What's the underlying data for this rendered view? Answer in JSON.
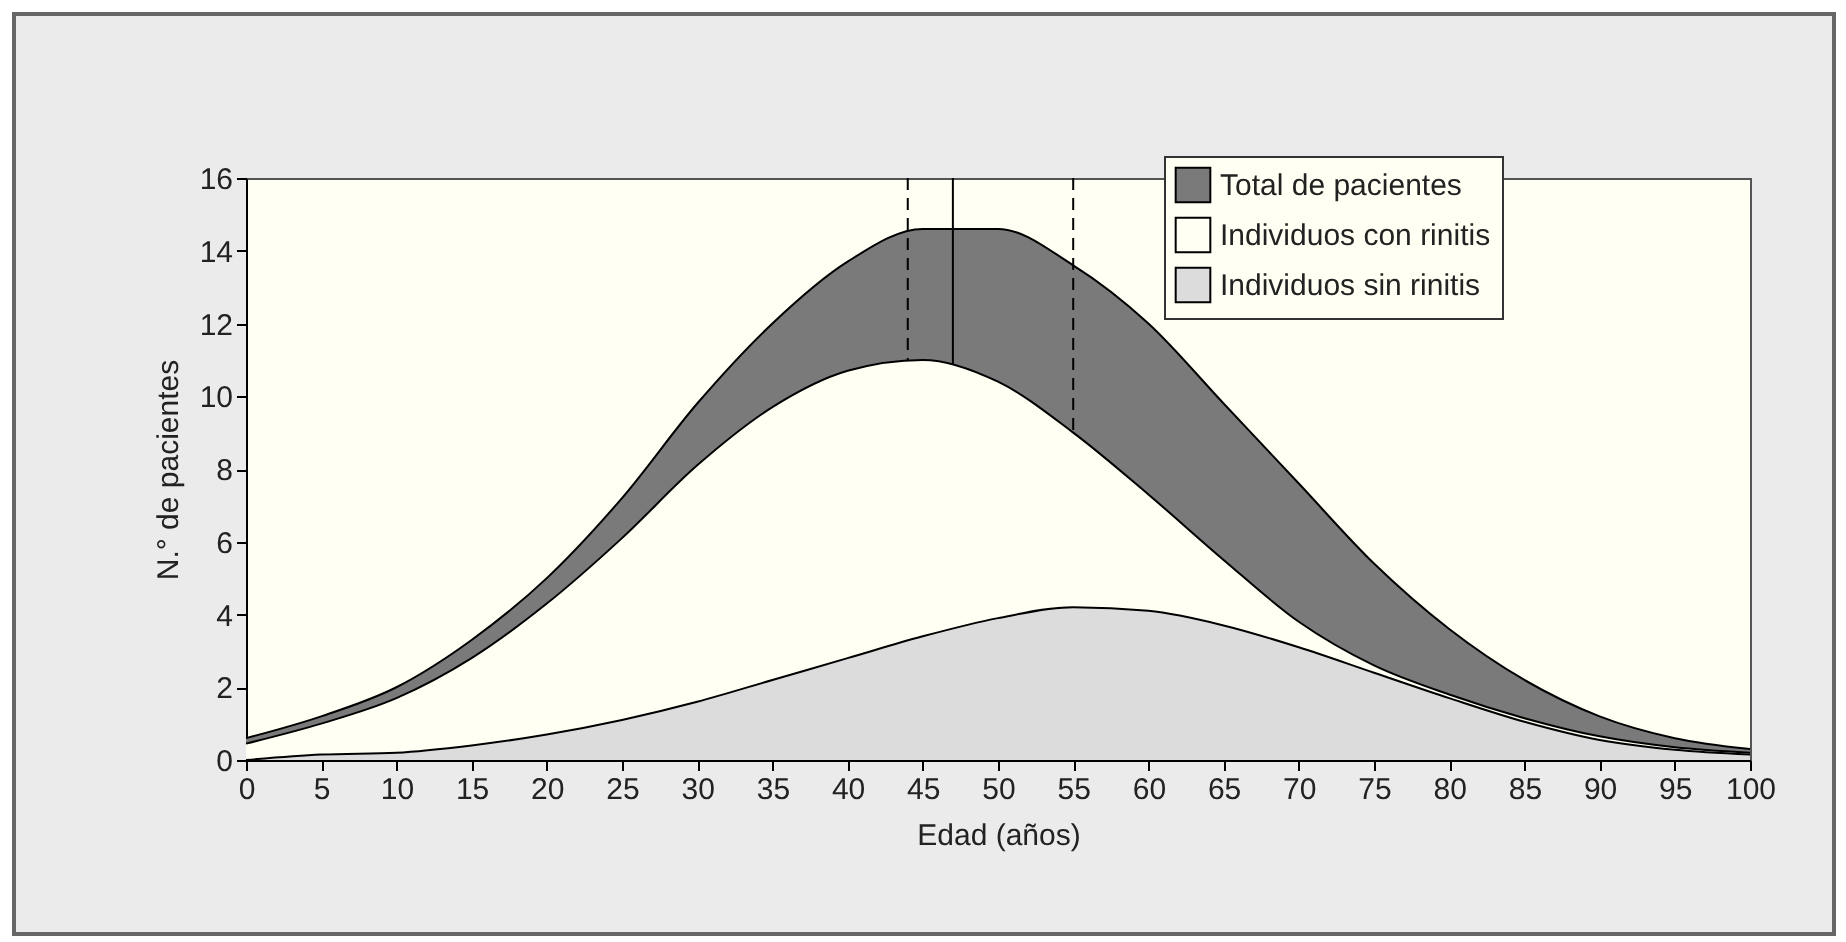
{
  "chart_data": {
    "type": "area",
    "xlabel": "Edad (años)",
    "ylabel": "N.° de pacientes",
    "x": [
      0,
      5,
      10,
      15,
      20,
      25,
      30,
      35,
      40,
      45,
      50,
      55,
      60,
      65,
      70,
      75,
      80,
      85,
      90,
      95,
      100
    ],
    "series": [
      {
        "name": "Total de pacientes",
        "color": "#7a7a7a",
        "values": [
          0.6,
          1.2,
          2.0,
          3.3,
          5.0,
          7.2,
          9.8,
          12.0,
          13.7,
          14.6,
          14.6,
          13.6,
          12.0,
          9.8,
          7.6,
          5.4,
          3.6,
          2.2,
          1.2,
          0.6,
          0.3
        ]
      },
      {
        "name": "Individuos con rinitis",
        "color": "#fffff3",
        "values": [
          0.45,
          1.0,
          1.7,
          2.8,
          4.3,
          6.1,
          8.1,
          9.7,
          10.7,
          11.0,
          10.4,
          9.0,
          7.3,
          5.5,
          3.8,
          2.6,
          1.8,
          1.15,
          0.65,
          0.35,
          0.2
        ]
      },
      {
        "name": "Individuos sin rinitis",
        "color": "#dcdcdc",
        "values": [
          0,
          0.15,
          0.2,
          0.4,
          0.7,
          1.1,
          1.6,
          2.2,
          2.8,
          3.4,
          3.9,
          4.2,
          4.1,
          3.7,
          3.1,
          2.4,
          1.7,
          1.05,
          0.55,
          0.28,
          0.15
        ]
      }
    ],
    "xlim": [
      0,
      100
    ],
    "xticks": [
      0,
      5,
      10,
      15,
      20,
      25,
      30,
      35,
      40,
      45,
      50,
      55,
      60,
      65,
      70,
      75,
      80,
      85,
      90,
      95,
      100
    ],
    "ylim": [
      0,
      16
    ],
    "yticks": [
      0,
      2,
      4,
      6,
      8,
      10,
      12,
      14,
      16
    ],
    "ref_lines": [
      {
        "axis": "x",
        "value": 44,
        "line_style": "dashed"
      },
      {
        "axis": "x",
        "value": 47,
        "line_style": "solid"
      },
      {
        "axis": "x",
        "value": 55,
        "line_style": "dashed"
      }
    ],
    "legend": "top right",
    "grid": false
  }
}
